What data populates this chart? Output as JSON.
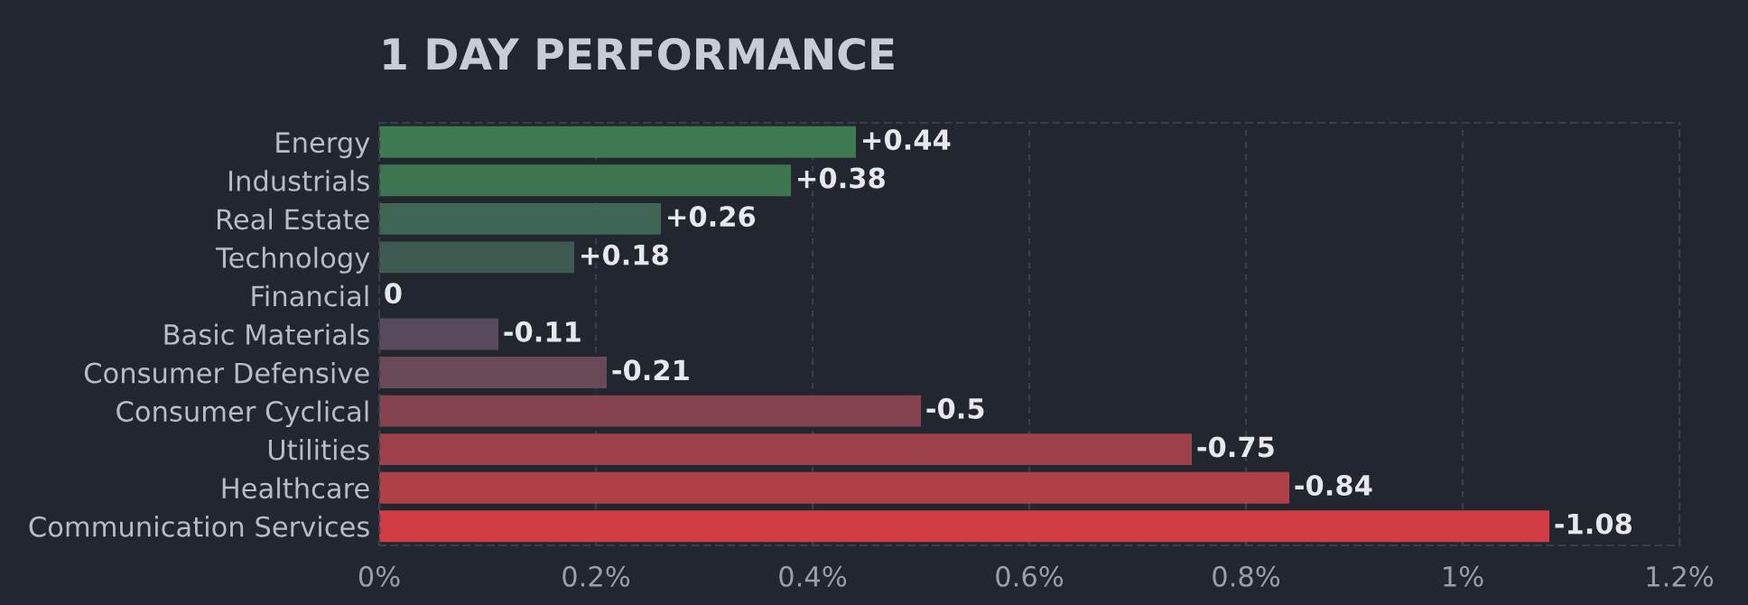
{
  "chart_data": {
    "type": "bar",
    "orientation": "horizontal",
    "title": "1 DAY PERFORMANCE",
    "categories": [
      "Energy",
      "Industrials",
      "Real Estate",
      "Technology",
      "Financial",
      "Basic Materials",
      "Consumer Defensive",
      "Consumer Cyclical",
      "Utilities",
      "Healthcare",
      "Communication Services"
    ],
    "values": [
      0.44,
      0.38,
      0.26,
      0.18,
      0,
      -0.11,
      -0.21,
      -0.5,
      -0.75,
      -0.84,
      -1.08
    ],
    "base": [
      0,
      0,
      0,
      0,
      null,
      0.11,
      0.21,
      0.5,
      0.75,
      0.84,
      1.08
    ],
    "value_labels": [
      "+0.44",
      "+0.38",
      "+0.26",
      "+0.18",
      "0",
      "-0.11",
      "-0.21",
      "-0.5",
      "-0.75",
      "-0.84",
      "-1.08"
    ],
    "colors": [
      "#3d7a52",
      "#3d7550",
      "#3f6655",
      "#3f5a50",
      "#4a4a55",
      "#574a5c",
      "#6a4a56",
      "#84434f",
      "#9e404a",
      "#b04048",
      "#d03b44"
    ],
    "xlim": [
      0,
      1.2
    ],
    "xticks": [
      {
        "value": 0,
        "label": "0%"
      },
      {
        "value": 0.2,
        "label": "0.2%"
      },
      {
        "value": 0.4,
        "label": "0.4%"
      },
      {
        "value": 0.6,
        "label": "0.6%"
      },
      {
        "value": 0.8,
        "label": "0.8%"
      },
      {
        "value": 1,
        "label": "1%"
      },
      {
        "value": 1.2,
        "label": "1.2%"
      }
    ],
    "grid": "x"
  }
}
